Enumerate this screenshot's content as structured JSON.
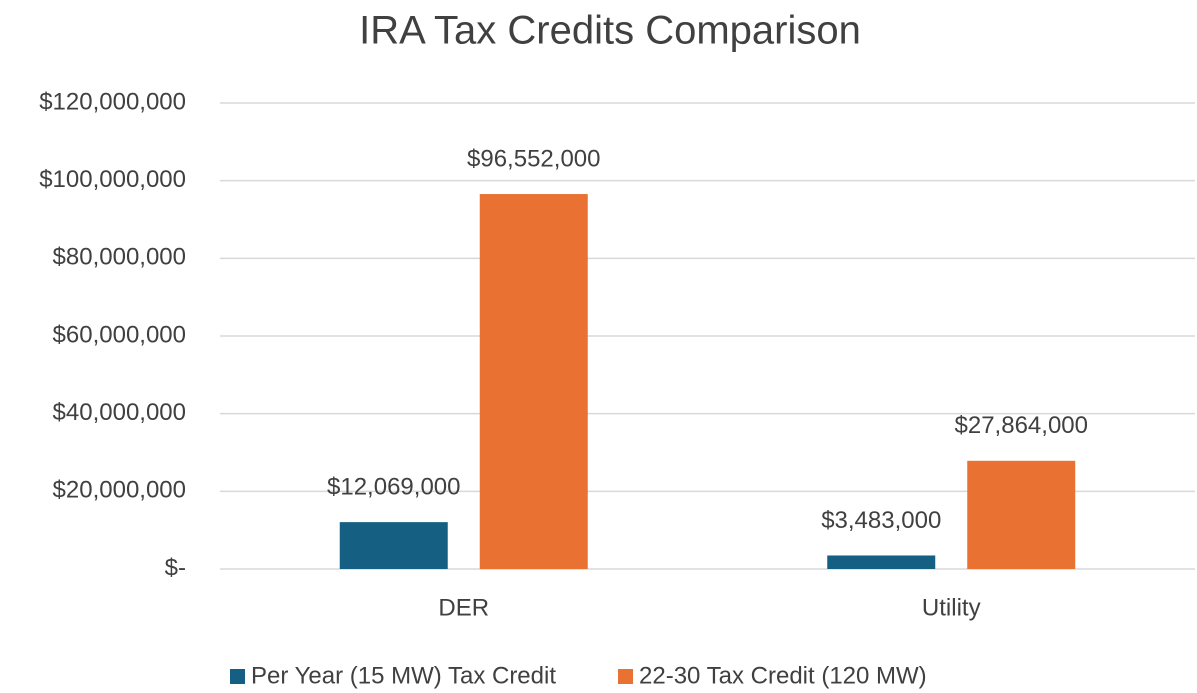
{
  "chart_data": {
    "type": "bar",
    "title": "IRA Tax Credits Comparison",
    "categories": [
      "DER",
      "Utility"
    ],
    "series": [
      {
        "name": "Per Year (15 MW) Tax Credit",
        "color": "#156082",
        "values": [
          12069000,
          3483000
        ],
        "value_labels": [
          "$12,069,000",
          "$3,483,000"
        ]
      },
      {
        "name": "22-30 Tax Credit (120 MW)",
        "color": "#e97132",
        "values": [
          96552000,
          27864000
        ],
        "value_labels": [
          "$96,552,000",
          "$27,864,000"
        ]
      }
    ],
    "ylim": [
      0,
      120000000
    ],
    "yticks": [
      {
        "value": 0,
        "label": "$-"
      },
      {
        "value": 20000000,
        "label": "$20,000,000"
      },
      {
        "value": 40000000,
        "label": "$40,000,000"
      },
      {
        "value": 60000000,
        "label": "$60,000,000"
      },
      {
        "value": 80000000,
        "label": "$80,000,000"
      },
      {
        "value": 100000000,
        "label": "$100,000,000"
      },
      {
        "value": 120000000,
        "label": "$120,000,000"
      }
    ],
    "grid": true,
    "legend": "bottom"
  }
}
